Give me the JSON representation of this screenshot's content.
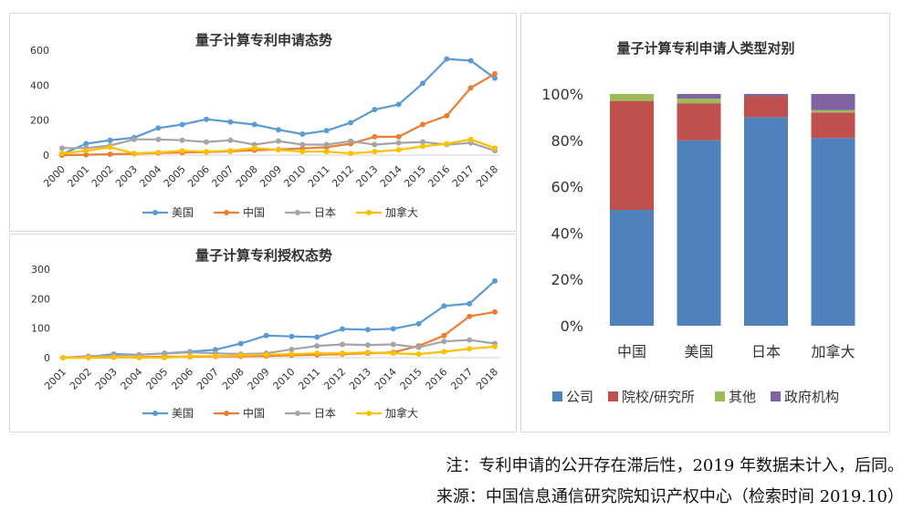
{
  "chart_data": [
    {
      "type": "line",
      "title": "量子计算专利申请态势",
      "x": [
        "2000",
        "2001",
        "2002",
        "2003",
        "2004",
        "2005",
        "2006",
        "2007",
        "2008",
        "2009",
        "2010",
        "2011",
        "2012",
        "2013",
        "2014",
        "2015",
        "2016",
        "2017",
        "2018"
      ],
      "ylim": [
        0,
        600
      ],
      "yticks": [
        0,
        200,
        400,
        600
      ],
      "grid": false,
      "legend": "bottom",
      "series": [
        {
          "name": "美国",
          "color": "#5b9bd5",
          "values": [
            5,
            65,
            85,
            100,
            155,
            175,
            205,
            190,
            175,
            145,
            120,
            140,
            185,
            260,
            290,
            410,
            550,
            540,
            440
          ]
        },
        {
          "name": "中国",
          "color": "#ed7d31",
          "values": [
            0,
            2,
            5,
            8,
            12,
            15,
            18,
            22,
            28,
            32,
            38,
            45,
            65,
            105,
            105,
            175,
            225,
            385,
            465
          ]
        },
        {
          "name": "日本",
          "color": "#a5a5a5",
          "values": [
            40,
            40,
            55,
            90,
            90,
            85,
            75,
            85,
            60,
            80,
            60,
            60,
            80,
            60,
            70,
            75,
            60,
            70,
            25
          ]
        },
        {
          "name": "加拿大",
          "color": "#ffc000",
          "values": [
            10,
            25,
            45,
            10,
            15,
            25,
            20,
            25,
            40,
            30,
            20,
            20,
            10,
            20,
            30,
            50,
            65,
            90,
            40
          ]
        }
      ]
    },
    {
      "type": "line",
      "title": "量子计算专利授权态势",
      "x": [
        "2001",
        "2002",
        "2003",
        "2004",
        "2005",
        "2006",
        "2007",
        "2008",
        "2009",
        "2010",
        "2011",
        "2012",
        "2013",
        "2014",
        "2015",
        "2016",
        "2017",
        "2018"
      ],
      "ylim": [
        0,
        300
      ],
      "yticks": [
        0,
        100,
        200,
        300
      ],
      "grid": false,
      "legend": "bottom",
      "series": [
        {
          "name": "美国",
          "color": "#5b9bd5",
          "values": [
            0,
            3,
            12,
            10,
            15,
            20,
            27,
            48,
            75,
            72,
            70,
            97,
            95,
            98,
            115,
            175,
            183,
            260
          ]
        },
        {
          "name": "中国",
          "color": "#ed7d31",
          "values": [
            0,
            0,
            1,
            2,
            3,
            3,
            4,
            5,
            6,
            8,
            10,
            12,
            15,
            18,
            40,
            75,
            140,
            155
          ]
        },
        {
          "name": "日本",
          "color": "#a5a5a5",
          "values": [
            0,
            5,
            8,
            10,
            14,
            18,
            15,
            12,
            15,
            28,
            40,
            45,
            43,
            45,
            35,
            55,
            60,
            48
          ]
        },
        {
          "name": "加拿大",
          "color": "#ffc000",
          "values": [
            0,
            0,
            2,
            0,
            0,
            5,
            5,
            8,
            10,
            12,
            15,
            15,
            18,
            15,
            12,
            20,
            30,
            38
          ]
        }
      ]
    },
    {
      "type": "bar",
      "stacked": true,
      "title": "量子计算专利申请人类型对别",
      "categories": [
        "中国",
        "美国",
        "日本",
        "加拿大"
      ],
      "ylim": [
        0,
        100
      ],
      "yticks": [
        "0%",
        "20%",
        "40%",
        "60%",
        "80%",
        "100%"
      ],
      "grid": false,
      "legend": "bottom",
      "series": [
        {
          "name": "公司",
          "color": "#4f81bd",
          "values": [
            50,
            80,
            90,
            81
          ]
        },
        {
          "name": "院校/研究所",
          "color": "#c0504d",
          "values": [
            47,
            16,
            9,
            11
          ]
        },
        {
          "name": "其他",
          "color": "#9bbb59",
          "values": [
            3,
            2,
            0,
            1
          ]
        },
        {
          "name": "政府机构",
          "color": "#8064a2",
          "values": [
            0,
            2,
            1,
            7
          ]
        }
      ]
    }
  ],
  "notes": {
    "line1": "注：专利申请的公开存在滞后性，2019 年数据未计入，后同。",
    "line2": "来源：中国信息通信研究院知识产权中心（检索时间 2019.10）"
  }
}
